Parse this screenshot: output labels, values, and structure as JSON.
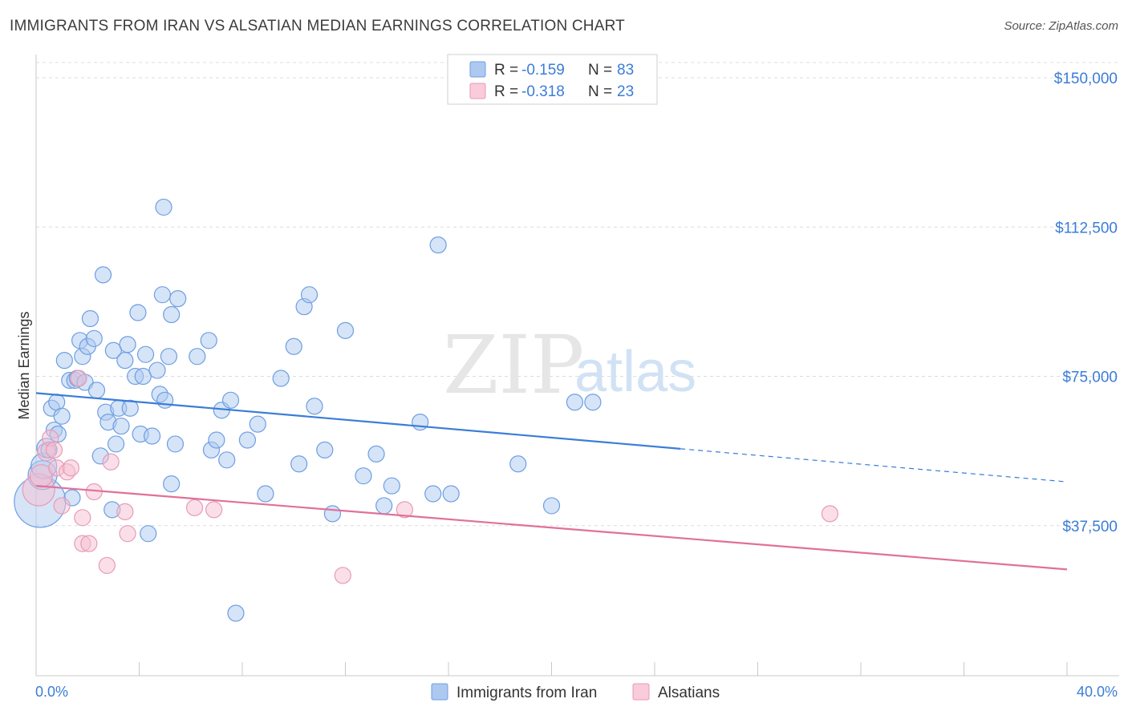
{
  "title": "IMMIGRANTS FROM IRAN VS ALSATIAN MEDIAN EARNINGS CORRELATION CHART",
  "source": "Source: ZipAtlas.com",
  "watermark": {
    "part1": "ZIP",
    "part2": "atlas"
  },
  "colors": {
    "blue": "#3b7dd8",
    "blue_fill": "#adc9f0",
    "pink": "#e0709a",
    "pink_fill": "#f6bfd2",
    "grid": "#dcdcdc"
  },
  "legend": {
    "rows": [
      {
        "r_label": "R =",
        "r_value": "-0.159",
        "n_label": "N =",
        "n_value": "83"
      },
      {
        "r_label": "R =",
        "r_value": "-0.318",
        "n_label": "N =",
        "n_value": "23"
      }
    ]
  },
  "bottom_legend": [
    "Immigrants from Iran",
    "Alsatians"
  ],
  "chart_data": {
    "type": "scatter",
    "title": "IMMIGRANTS FROM IRAN VS ALSATIAN MEDIAN EARNINGS CORRELATION CHART",
    "xlabel": "",
    "ylabel": "Median Earnings",
    "xlim": [
      0,
      40
    ],
    "ylim": [
      0,
      155000
    ],
    "x_tick_labels": [
      "0.0%",
      "40.0%"
    ],
    "y_ticks": [
      37500,
      75000,
      112500,
      150000
    ],
    "y_tick_labels": [
      "$37,500",
      "$75,000",
      "$112,500",
      "$150,000"
    ],
    "grid": true,
    "legend_position": "top-center",
    "series": [
      {
        "name": "Immigrants from Iran",
        "r": -0.159,
        "n": 83,
        "trend": {
          "x0": 0.0,
          "y0": 70800,
          "x1": 25.0,
          "y1": 56800,
          "dashed_to_x": 40.0,
          "dashed_to_y": 48500
        },
        "points": [
          [
            0.15,
            43500,
            32
          ],
          [
            0.25,
            50200,
            18
          ],
          [
            0.3,
            52500,
            16
          ],
          [
            0.4,
            57000,
            12
          ],
          [
            0.5,
            56500,
            10
          ],
          [
            0.6,
            67000,
            10
          ],
          [
            0.7,
            61500,
            10
          ],
          [
            0.8,
            68500,
            10
          ],
          [
            0.85,
            60500,
            10
          ],
          [
            1.0,
            65000,
            10
          ],
          [
            1.1,
            79000,
            10
          ],
          [
            1.3,
            74000,
            10
          ],
          [
            1.4,
            44500,
            10
          ],
          [
            1.5,
            74000,
            10
          ],
          [
            1.6,
            74500,
            10
          ],
          [
            1.7,
            84000,
            10
          ],
          [
            1.8,
            80000,
            10
          ],
          [
            1.9,
            73500,
            10
          ],
          [
            2.0,
            82500,
            10
          ],
          [
            2.1,
            89500,
            10
          ],
          [
            2.25,
            84500,
            10
          ],
          [
            2.35,
            71500,
            10
          ],
          [
            2.5,
            55000,
            10
          ],
          [
            2.6,
            100500,
            10
          ],
          [
            2.7,
            66000,
            10
          ],
          [
            2.8,
            63500,
            10
          ],
          [
            2.95,
            41500,
            10
          ],
          [
            3.0,
            81500,
            10
          ],
          [
            3.1,
            58000,
            10
          ],
          [
            3.2,
            67000,
            10
          ],
          [
            3.3,
            62500,
            10
          ],
          [
            3.45,
            79000,
            10
          ],
          [
            3.55,
            83000,
            10
          ],
          [
            3.65,
            67000,
            10
          ],
          [
            3.85,
            75000,
            10
          ],
          [
            3.95,
            91000,
            10
          ],
          [
            4.05,
            60500,
            10
          ],
          [
            4.15,
            75000,
            10
          ],
          [
            4.25,
            80500,
            10
          ],
          [
            4.35,
            35500,
            10
          ],
          [
            4.5,
            60000,
            10
          ],
          [
            4.7,
            76500,
            10
          ],
          [
            4.8,
            70500,
            10
          ],
          [
            4.9,
            95500,
            10
          ],
          [
            4.95,
            117500,
            10
          ],
          [
            5.0,
            69000,
            10
          ],
          [
            5.15,
            80000,
            10
          ],
          [
            5.25,
            90500,
            10
          ],
          [
            5.25,
            48000,
            10
          ],
          [
            5.4,
            58000,
            10
          ],
          [
            5.5,
            94500,
            10
          ],
          [
            6.25,
            80000,
            10
          ],
          [
            6.7,
            84000,
            10
          ],
          [
            6.8,
            56500,
            10
          ],
          [
            7.0,
            59000,
            10
          ],
          [
            7.2,
            66500,
            10
          ],
          [
            7.4,
            54000,
            10
          ],
          [
            7.55,
            69000,
            10
          ],
          [
            7.75,
            15500,
            10
          ],
          [
            8.2,
            59000,
            10
          ],
          [
            8.6,
            63000,
            10
          ],
          [
            8.9,
            45500,
            10
          ],
          [
            9.5,
            74500,
            10
          ],
          [
            10.0,
            82500,
            10
          ],
          [
            10.2,
            53000,
            10
          ],
          [
            10.4,
            92500,
            10
          ],
          [
            10.6,
            95500,
            10
          ],
          [
            10.8,
            67500,
            10
          ],
          [
            11.2,
            56500,
            10
          ],
          [
            11.5,
            40500,
            10
          ],
          [
            12.0,
            86500,
            10
          ],
          [
            12.7,
            50000,
            10
          ],
          [
            13.2,
            55500,
            10
          ],
          [
            13.5,
            42500,
            10
          ],
          [
            13.8,
            47500,
            10
          ],
          [
            14.9,
            63500,
            10
          ],
          [
            15.4,
            45500,
            10
          ],
          [
            15.6,
            108000,
            10
          ],
          [
            16.1,
            45500,
            10
          ],
          [
            18.7,
            53000,
            10
          ],
          [
            20.0,
            42500,
            10
          ],
          [
            20.9,
            68500,
            10
          ],
          [
            21.6,
            68500,
            10
          ]
        ]
      },
      {
        "name": "Alsatians",
        "r": -0.318,
        "n": 23,
        "trend": {
          "x0": 0.0,
          "y0": 47500,
          "x1": 40.0,
          "y1": 26500
        },
        "points": [
          [
            0.1,
            46500,
            20
          ],
          [
            0.2,
            50000,
            14
          ],
          [
            0.4,
            56000,
            11
          ],
          [
            0.55,
            59500,
            10
          ],
          [
            0.7,
            56500,
            10
          ],
          [
            0.8,
            52000,
            10
          ],
          [
            1.0,
            42500,
            10
          ],
          [
            1.2,
            51000,
            10
          ],
          [
            1.35,
            52000,
            10
          ],
          [
            1.65,
            74500,
            10
          ],
          [
            1.8,
            39500,
            10
          ],
          [
            1.8,
            33000,
            10
          ],
          [
            2.05,
            33000,
            10
          ],
          [
            2.25,
            46000,
            10
          ],
          [
            2.75,
            27500,
            10
          ],
          [
            2.9,
            53500,
            10
          ],
          [
            3.45,
            41000,
            10
          ],
          [
            3.55,
            35500,
            10
          ],
          [
            6.15,
            42000,
            10
          ],
          [
            6.9,
            41500,
            10
          ],
          [
            11.9,
            25000,
            10
          ],
          [
            14.3,
            41500,
            10
          ],
          [
            30.8,
            40500,
            10
          ]
        ]
      }
    ]
  }
}
